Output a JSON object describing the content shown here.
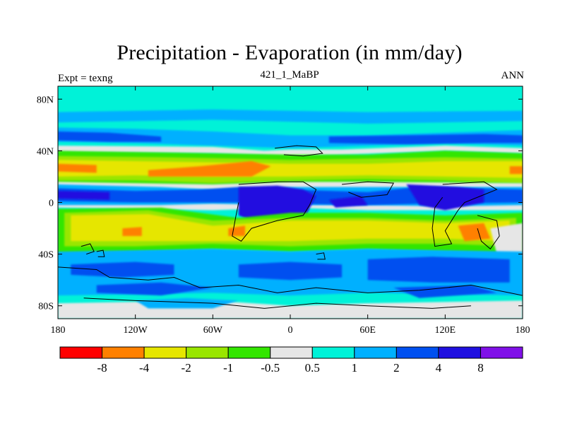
{
  "header": {
    "title": "Precipitation - Evaporation (in mm/day)",
    "subtitle": "421_1_MaBP",
    "left_label": "Expt = texng",
    "right_label": "ANN"
  },
  "axes": {
    "y_ticks": [
      {
        "label": "80N",
        "value": 80
      },
      {
        "label": "40N",
        "value": 40
      },
      {
        "label": "0",
        "value": 0
      },
      {
        "label": "40S",
        "value": -40
      },
      {
        "label": "80S",
        "value": -80
      }
    ],
    "x_ticks": [
      {
        "label": "180",
        "value": -180
      },
      {
        "label": "120W",
        "value": -120
      },
      {
        "label": "60W",
        "value": -60
      },
      {
        "label": "0",
        "value": 0
      },
      {
        "label": "60E",
        "value": 60
      },
      {
        "label": "120E",
        "value": 120
      },
      {
        "label": "180",
        "value": 180
      }
    ],
    "lon_range": [
      -180,
      180
    ],
    "lat_range": [
      -90,
      90
    ]
  },
  "colorbar": {
    "colors": [
      "#ff0000",
      "#ff8000",
      "#e6e600",
      "#99e600",
      "#33e600",
      "#e6e6e6",
      "#00f2d8",
      "#00b0ff",
      "#0050f0",
      "#2010e0",
      "#8010e8"
    ],
    "labels": [
      "-8",
      "-4",
      "-2",
      "-1",
      "-0.5",
      "0.5",
      "1",
      "2",
      "4",
      "8"
    ]
  },
  "map_palette": {
    "ocean_bg": "#00f2d8",
    "green": "#33e600",
    "yellowgreen": "#99e600",
    "yellow": "#e6e600",
    "orange": "#ff8000",
    "gray": "#e6e6e6",
    "lightblue": "#00b0ff",
    "blue": "#0050f0",
    "darkblue": "#2010e0",
    "coast": "#000000"
  }
}
